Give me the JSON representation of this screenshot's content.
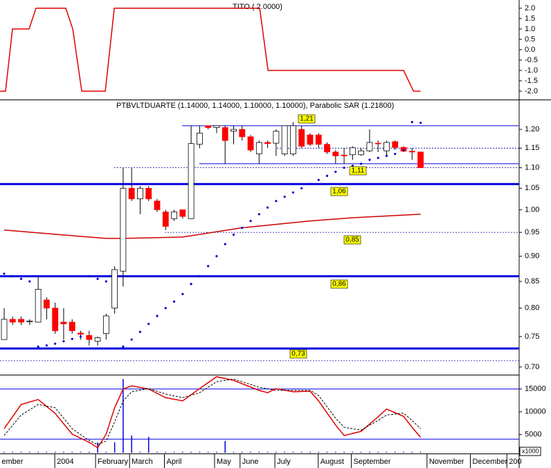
{
  "chart_data": [
    {
      "type": "line",
      "title": "TITO ( 2.0000)",
      "xlim": [
        -0.49,
        60.6
      ],
      "ylim": [
        -2.37,
        2.33
      ],
      "yticks": [
        {
          "value": 2,
          "label": "2.0"
        },
        {
          "value": 1.5,
          "label": "1.5"
        },
        {
          "value": 1,
          "label": "1.0"
        },
        {
          "value": 0.5,
          "label": "0.5"
        },
        {
          "value": 0,
          "label": "0.0"
        },
        {
          "value": -0.5,
          "label": "-0.5"
        },
        {
          "value": -1,
          "label": "-1.0"
        },
        {
          "value": -1.5,
          "label": "-1.5"
        },
        {
          "value": -2,
          "label": "-2.0"
        }
      ],
      "series": [
        {
          "color": "#e00000",
          "x": [
            -0.49,
            0.16,
            0.98,
            2.93,
            3.75,
            7.25,
            8.07,
            9.13,
            11.9,
            12.96,
            30.07,
            31.05,
            47.0,
            48.17,
            49.0
          ],
          "values": [
            -2,
            -2,
            1,
            1,
            2,
            2,
            1,
            -2,
            -2,
            2,
            2,
            -1,
            -1,
            -2,
            -2
          ]
        }
      ]
    },
    {
      "type": "candlestick",
      "title": "PTBVLTDUARTE (1.14000, 1.14000, 1.10000, 1.10000), Parabolic SAR (1.21800)",
      "log_scale": true,
      "xlim": [
        -0.49,
        60.6
      ],
      "ylim": [
        0.689,
        1.278
      ],
      "yticks": [
        {
          "value": 1.2,
          "label": "1.20"
        },
        {
          "value": 1.15,
          "label": "1.15"
        },
        {
          "value": 1.1,
          "label": "1.10"
        },
        {
          "value": 1.05,
          "label": "1.05"
        },
        {
          "value": 1.0,
          "label": "1.00"
        },
        {
          "value": 0.95,
          "label": "0.95"
        },
        {
          "value": 0.9,
          "label": "0.90"
        },
        {
          "value": 0.85,
          "label": "0.85"
        },
        {
          "value": 0.8,
          "label": "0.80"
        },
        {
          "value": 0.75,
          "label": "0.75"
        },
        {
          "value": 0.7,
          "label": "0.70"
        }
      ],
      "x": [
        0,
        1,
        2,
        3,
        4,
        5,
        6,
        7,
        8,
        9,
        10,
        11,
        12,
        13,
        14,
        15,
        16,
        17,
        18,
        19,
        20,
        21,
        22,
        23,
        24,
        25,
        26,
        27,
        28,
        29,
        30,
        31,
        32,
        33,
        34,
        35,
        36,
        37,
        38,
        39,
        40,
        41,
        42,
        43,
        44,
        45,
        46,
        47,
        48,
        49
      ],
      "open": [
        0.745,
        0.78,
        0.78,
        0.777,
        0.775,
        0.815,
        0.8,
        0.775,
        0.775,
        0.756,
        0.752,
        0.742,
        0.755,
        0.8,
        0.87,
        1.05,
        1.025,
        1.05,
        1.02,
        0.995,
        0.98,
        1.0,
        0.98,
        1.16,
        1.21,
        1.205,
        1.205,
        1.195,
        1.2,
        1.18,
        1.135,
        1.165,
        1.163,
        1.135,
        1.135,
        1.2,
        1.185,
        1.185,
        1.16,
        1.14,
        1.132,
        1.133,
        1.133,
        1.143,
        1.163,
        1.143,
        1.167,
        1.152,
        1.142,
        1.14
      ],
      "high": [
        0.8,
        0.785,
        0.785,
        0.78,
        0.86,
        0.82,
        0.81,
        0.8,
        0.78,
        0.76,
        0.76,
        0.75,
        0.79,
        0.88,
        1.1,
        1.1,
        1.055,
        1.055,
        1.025,
        1.0,
        1.0,
        1.0,
        1.21,
        1.21,
        1.21,
        1.21,
        1.21,
        1.21,
        1.21,
        1.185,
        1.17,
        1.17,
        1.2,
        1.21,
        1.22,
        1.21,
        1.19,
        1.19,
        1.165,
        1.145,
        1.15,
        1.155,
        1.15,
        1.2,
        1.17,
        1.17,
        1.17,
        1.155,
        1.15,
        1.14
      ],
      "low": [
        0.745,
        0.77,
        0.77,
        0.77,
        0.775,
        0.78,
        0.755,
        0.745,
        0.755,
        0.745,
        0.735,
        0.735,
        0.745,
        0.79,
        0.84,
        1.02,
        0.99,
        1.02,
        0.995,
        0.955,
        0.975,
        0.98,
        0.98,
        1.15,
        1.2,
        1.19,
        1.11,
        1.16,
        1.17,
        1.14,
        1.11,
        1.15,
        1.13,
        1.13,
        1.13,
        1.15,
        1.155,
        1.15,
        1.135,
        1.11,
        1.11,
        1.12,
        1.13,
        1.14,
        1.14,
        1.13,
        1.145,
        1.14,
        1.12,
        1.1
      ],
      "close": [
        0.78,
        0.775,
        0.775,
        0.777,
        0.835,
        0.8,
        0.76,
        0.772,
        0.76,
        0.754,
        0.745,
        0.748,
        0.786,
        0.873,
        1.05,
        1.025,
        1.05,
        1.025,
        1.0,
        0.963,
        0.995,
        0.985,
        1.162,
        1.19,
        1.205,
        1.21,
        1.17,
        1.2,
        1.18,
        1.145,
        1.165,
        1.162,
        1.195,
        1.21,
        1.21,
        1.155,
        1.16,
        1.16,
        1.14,
        1.13,
        1.13,
        1.151,
        1.143,
        1.165,
        1.162,
        1.165,
        1.152,
        1.142,
        1.14,
        1.1
      ],
      "up_color": "#ffffff",
      "down_color": "#ff0000",
      "sar": {
        "color": "#0000cc",
        "values": [
          0.865,
          0.86,
          0.855,
          0.85,
          0.733,
          0.735,
          0.738,
          0.742,
          0.746,
          0.75,
          0.86,
          0.855,
          0.85,
          null,
          0.733,
          0.745,
          0.758,
          0.772,
          0.786,
          0.8,
          0.812,
          0.826,
          0.845,
          0.86,
          0.88,
          0.9,
          0.925,
          0.945,
          0.96,
          0.975,
          0.99,
          1.005,
          1.02,
          1.03,
          1.04,
          1.05,
          1.06,
          1.07,
          1.08,
          1.09,
          1.1,
          1.105,
          1.11,
          1.12,
          1.125,
          1.13,
          1.135,
          1.145,
          1.22,
          1.218
        ]
      },
      "average": {
        "color": "#cc0000",
        "x": [
          0,
          12,
          14,
          21,
          28,
          36,
          41,
          49
        ],
        "values": [
          0.955,
          0.937,
          0.937,
          0.94,
          0.96,
          0.975,
          0.982,
          0.99
        ]
      },
      "levels": [
        {
          "value": 1.21,
          "style": "thin"
        },
        {
          "value": 1.11,
          "style": "thin"
        },
        {
          "value": 1.15,
          "style": "dotted"
        },
        {
          "value": 1.1,
          "style": "dotted"
        },
        {
          "value": 1.06,
          "style": "thick"
        },
        {
          "value": 0.95,
          "style": "dotted"
        },
        {
          "value": 0.86,
          "style": "thick"
        },
        {
          "value": 0.73,
          "style": "thick"
        },
        {
          "value": 0.71,
          "style": "dotted"
        }
      ],
      "level_color": "#0000e0",
      "labels": [
        "1,21",
        "1,11",
        "1,06",
        "0,85",
        "0,86",
        "0,73"
      ]
    },
    {
      "type": "line",
      "xlim": [
        -0.49,
        60.6
      ],
      "ylim": [
        1000,
        18000
      ],
      "yticks": [
        15000,
        10000,
        5000
      ],
      "axis_note": "x1000",
      "xticks": [
        {
          "value": -0.3,
          "label": "ember"
        },
        {
          "value": 6.2,
          "label": "2004"
        },
        {
          "value": 11,
          "label": "February"
        },
        {
          "value": 15,
          "label": "March"
        },
        {
          "value": 19.1,
          "label": "April"
        },
        {
          "value": 25,
          "label": "May"
        },
        {
          "value": 28,
          "label": "June"
        },
        {
          "value": 32.1,
          "label": "July"
        },
        {
          "value": 37.2,
          "label": "August"
        },
        {
          "value": 41.1,
          "label": "September"
        },
        {
          "value": 50,
          "label": "November"
        },
        {
          "value": 55.1,
          "label": "December"
        },
        {
          "value": 59.4,
          "label": "200"
        }
      ],
      "x": [
        0,
        1,
        2,
        3,
        4,
        5,
        6,
        7,
        8,
        9,
        10,
        11,
        12,
        13,
        14,
        15,
        16,
        17,
        18,
        19,
        20,
        21,
        22,
        23,
        24,
        25,
        26,
        27,
        28,
        29,
        30,
        31,
        32,
        33,
        34,
        35,
        36,
        37,
        38,
        39,
        40,
        41,
        42,
        43,
        44,
        45,
        46,
        47,
        48,
        49
      ],
      "volume": {
        "color": "#0000e0",
        "values": [
          1200,
          1200,
          1200,
          1200,
          1200,
          1200,
          1200,
          1200,
          1200,
          1200,
          1200,
          3300,
          1200,
          3300,
          17200,
          4800,
          1200,
          4500,
          1200,
          1200,
          1200,
          1200,
          1200,
          1200,
          1200,
          1200,
          3600,
          1200,
          1200,
          1200,
          1200,
          1200,
          1200,
          1200,
          1200,
          1200,
          1200,
          1200,
          1200,
          1200,
          1200,
          1200,
          1200,
          1200,
          1200,
          1200,
          1200,
          1200,
          1200,
          1200
        ]
      },
      "levels": [
        15000,
        4000
      ],
      "level_color": "#0000e0",
      "series": [
        {
          "color": "#e00000",
          "dashed": false,
          "x": [
            0,
            2,
            4,
            6,
            8,
            10,
            11,
            12,
            13,
            14,
            15,
            17,
            19,
            21,
            23,
            25,
            27,
            30,
            31,
            32,
            34,
            36,
            37,
            39,
            40,
            42,
            44,
            45,
            47,
            48,
            49
          ],
          "values": [
            6300,
            11600,
            12700,
            9650,
            5100,
            3300,
            2100,
            5100,
            10900,
            15000,
            15700,
            15000,
            13100,
            12400,
            15100,
            17700,
            16900,
            14700,
            14200,
            15100,
            14400,
            14500,
            12400,
            7100,
            4800,
            5700,
            8900,
            10600,
            9000,
            6600,
            4400
          ]
        },
        {
          "color": "#000000",
          "dashed": true,
          "x": [
            0,
            2,
            4,
            6,
            8,
            10,
            11,
            12,
            13,
            14,
            15,
            17,
            19,
            21,
            23,
            25,
            27,
            30,
            32,
            34,
            36,
            37,
            39,
            40,
            42,
            44,
            45,
            47,
            48,
            49
          ],
          "values": [
            4800,
            9300,
            11600,
            10900,
            6300,
            3700,
            2800,
            3600,
            7800,
            12400,
            14400,
            15100,
            13900,
            13100,
            14200,
            16600,
            17200,
            15400,
            14700,
            14700,
            14700,
            13600,
            8600,
            6600,
            6000,
            8100,
            9300,
            9700,
            8100,
            6300
          ]
        }
      ]
    }
  ]
}
